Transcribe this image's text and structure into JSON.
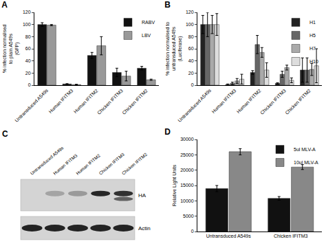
{
  "chart_data": [
    {
      "type": "bar",
      "title": "A",
      "y_label": "% infection normalised\nto plain A549s\n(GFP)",
      "categories": [
        "Untransduced A549s",
        "Human IFITM3",
        "Human IFITM2",
        "Chicken IFITM3",
        "Chicken IFITM2"
      ],
      "series": [
        {
          "name": "RABV",
          "color": "#111111",
          "values": [
            100,
            2,
            49,
            21,
            28
          ],
          "errors": [
            3,
            0.5,
            5,
            7,
            3
          ]
        },
        {
          "name": "LBV",
          "color": "#999999",
          "values": [
            99,
            1,
            65,
            15,
            9
          ],
          "errors": [
            1,
            0.5,
            15,
            8,
            1
          ]
        }
      ],
      "ylim": [
        0,
        120
      ],
      "yticks": [
        0,
        20,
        40,
        60,
        80,
        100,
        120
      ],
      "grid": false,
      "legend": "upper right"
    },
    {
      "type": "bar",
      "title": "B",
      "y_label": "% infection normalised to\nuntransduced A549s\n(Luciferase)",
      "categories": [
        "Untransduced A549s",
        "Human IFITM3",
        "Human IFITM2",
        "Chicken IFITM3",
        "Chicken IFITM2"
      ],
      "series": [
        {
          "name": "H1",
          "color": "#222222",
          "values": [
            100,
            1,
            21,
            3,
            25
          ],
          "errors": [
            15,
            1,
            3,
            1,
            20
          ]
        },
        {
          "name": "H5",
          "color": "#666666",
          "values": [
            100,
            3,
            67,
            18,
            25
          ],
          "errors": [
            20,
            2,
            15,
            5,
            20
          ]
        },
        {
          "name": "H7",
          "color": "#aaaaaa",
          "values": [
            100,
            7,
            54,
            29,
            26
          ],
          "errors": [
            15,
            4,
            8,
            4,
            10
          ]
        },
        {
          "name": "H10",
          "color": "#dddddd",
          "values": [
            100,
            10,
            25,
            8,
            32
          ],
          "errors": [
            18,
            8,
            12,
            4,
            28
          ]
        }
      ],
      "ylim": [
        0,
        120
      ],
      "yticks": [
        0,
        20,
        40,
        60,
        80,
        100,
        120
      ],
      "grid": false,
      "legend": "upper right"
    },
    {
      "type": "bar",
      "title": "D",
      "y_label": "Relative Light Units",
      "categories": [
        "Untransduced A549s",
        "Chicken IFITM3"
      ],
      "series": [
        {
          "name": "5ul MLV-A",
          "color": "#111111",
          "values": [
            14000,
            10800
          ],
          "errors": [
            1000,
            600
          ]
        },
        {
          "name": "10ul MLV-A",
          "color": "#888888",
          "values": [
            26000,
            21000
          ],
          "errors": [
            1000,
            800
          ]
        }
      ],
      "ylim": [
        0,
        30000
      ],
      "yticks": [
        0,
        5000,
        10000,
        15000,
        20000,
        25000,
        30000
      ],
      "grid": false,
      "legend": "upper right"
    }
  ],
  "blot": {
    "title": "C",
    "lanes": [
      "Untransduced A549s",
      "Human IFITM3",
      "Human IFITM2",
      "Chicken IFITM3",
      "Chicken IFITM2"
    ],
    "rows": [
      "HA",
      "Actin"
    ]
  }
}
